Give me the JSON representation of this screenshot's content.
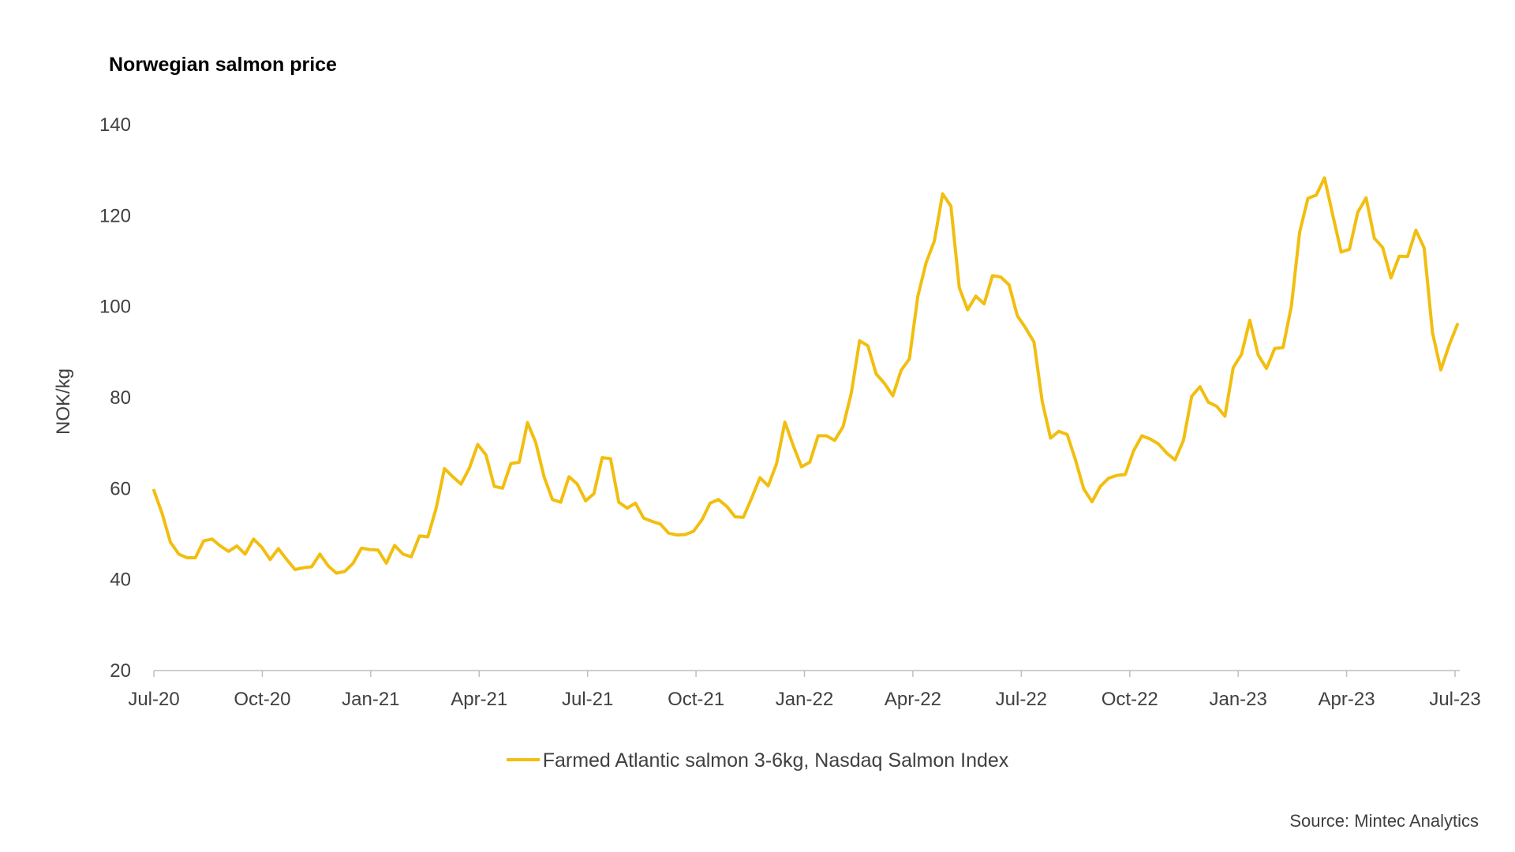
{
  "chart_data": {
    "type": "line",
    "title": "Norwegian salmon price",
    "ylabel": "NOK/kg",
    "xlabel": "",
    "ylim": [
      20,
      140
    ],
    "yticks": [
      20,
      40,
      60,
      80,
      100,
      120,
      140
    ],
    "x_start": "Jul-20",
    "x_end": "Jul-23",
    "xtick_labels": [
      "Jul-20",
      "Oct-20",
      "Jan-21",
      "Apr-21",
      "Jul-21",
      "Oct-21",
      "Jan-22",
      "Apr-22",
      "Jul-22",
      "Oct-22",
      "Jan-23",
      "Apr-23",
      "Jul-23"
    ],
    "grid": false,
    "legend_position": "bottom-center",
    "series": [
      {
        "name": "Farmed Atlantic salmon 3-6kg, Nasdaq Salmon Index",
        "color": "#F2BE0F",
        "frequency": "weekly",
        "values": [
          59.6,
          54.5,
          48.2,
          45.6,
          44.8,
          44.8,
          48.5,
          48.9,
          47.4,
          46.2,
          47.4,
          45.6,
          48.9,
          47.1,
          44.4,
          46.8,
          44.4,
          42.2,
          42.6,
          42.8,
          45.6,
          43.0,
          41.4,
          41.8,
          43.6,
          46.9,
          46.6,
          46.5,
          43.6,
          47.5,
          45.6,
          45.0,
          49.6,
          49.4,
          55.7,
          64.4,
          62.6,
          61.0,
          64.5,
          69.7,
          67.4,
          60.5,
          60.1,
          65.5,
          65.8,
          74.5,
          70.1,
          62.6,
          57.6,
          57.0,
          62.6,
          61.0,
          57.3,
          58.9,
          66.8,
          66.6,
          57.0,
          55.7,
          56.8,
          53.5,
          52.8,
          52.2,
          50.2,
          49.8,
          49.9,
          50.6,
          53.1,
          56.8,
          57.6,
          56.1,
          53.8,
          53.7,
          57.9,
          62.4,
          60.6,
          65.5,
          74.6,
          69.5,
          64.8,
          65.8,
          71.6,
          71.6,
          70.6,
          73.6,
          81.0,
          92.5,
          91.4,
          85.2,
          83.1,
          80.4,
          86.0,
          88.5,
          102.2,
          109.6,
          114.4,
          124.8,
          122.1,
          104.2,
          99.3,
          102.3,
          100.6,
          106.8,
          106.5,
          104.8,
          98.0,
          95.3,
          92.2,
          79.1,
          71.1,
          72.6,
          71.9,
          66.3,
          59.9,
          57.1,
          60.5,
          62.3,
          62.9,
          63.1,
          68.3,
          71.6,
          70.9,
          69.8,
          67.8,
          66.3,
          70.6,
          80.3,
          82.4,
          79.0,
          78.1,
          75.9,
          86.6,
          89.5,
          97.0,
          89.4,
          86.4,
          90.8,
          91.0,
          100.1,
          116.4,
          123.8,
          124.5,
          128.3,
          120.0,
          112.0,
          112.6,
          120.7,
          123.9,
          115.0,
          113.0,
          106.3,
          111.1,
          111.0,
          116.8,
          112.9,
          94.3,
          86.1,
          91.5,
          96.1
        ]
      }
    ]
  },
  "source": "Source: Mintec Analytics"
}
